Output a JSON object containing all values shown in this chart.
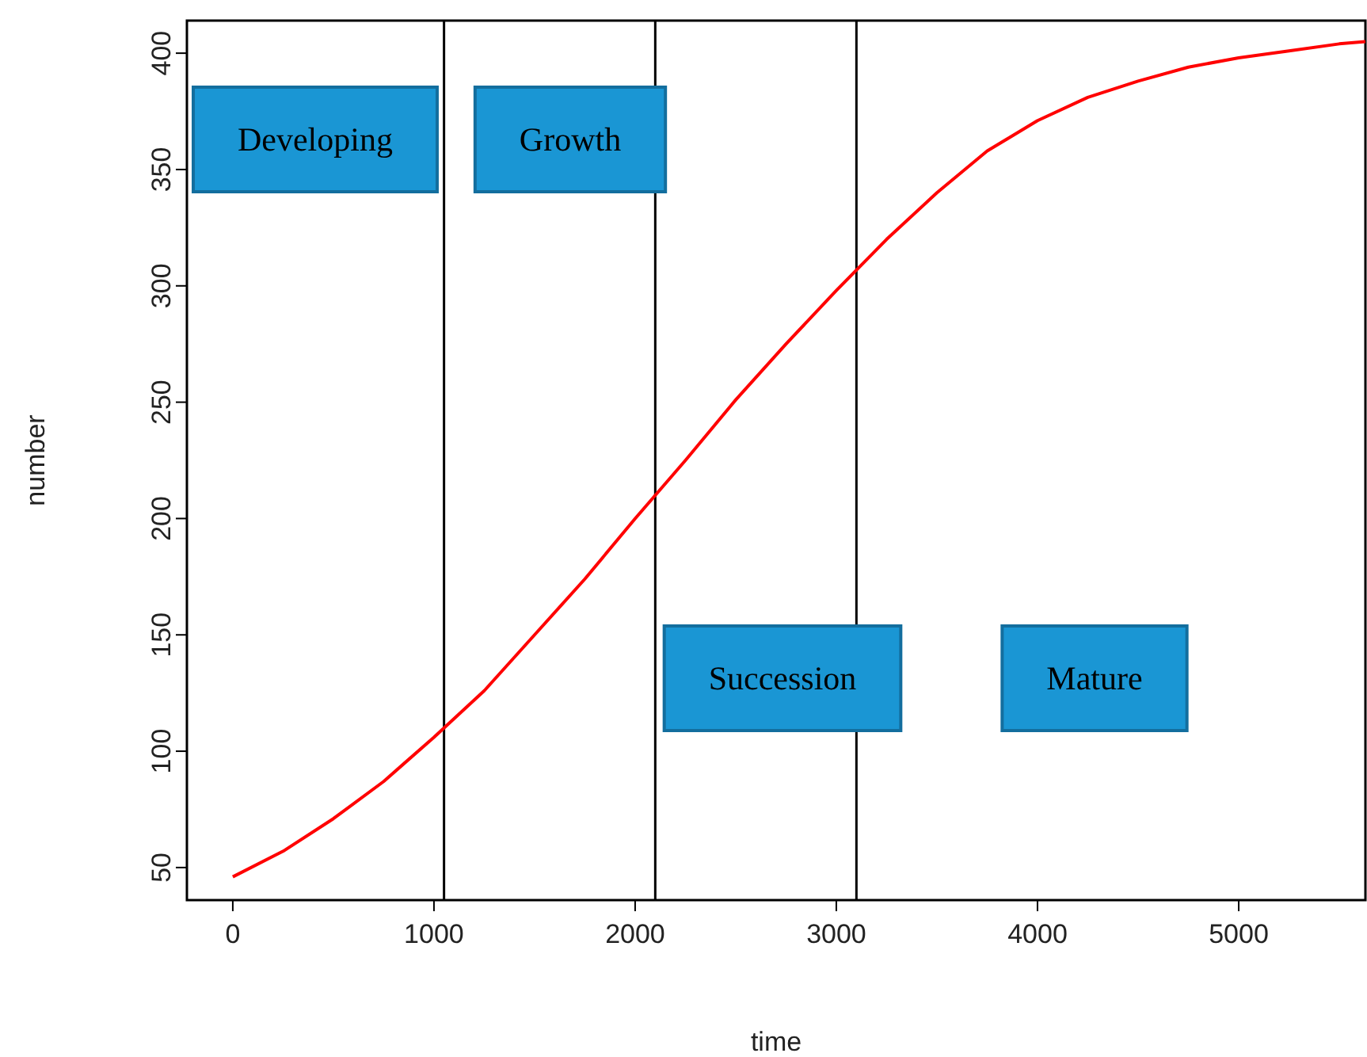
{
  "chart_data": {
    "type": "line",
    "xlabel": "time",
    "ylabel": "number",
    "x": [
      0,
      250,
      500,
      750,
      1000,
      1250,
      1500,
      1750,
      2000,
      2250,
      2500,
      2750,
      3000,
      3250,
      3500,
      3750,
      4000,
      4250,
      4500,
      4750,
      5000,
      5250,
      5500,
      5630
    ],
    "series": [
      {
        "color": "#ff0000",
        "values": [
          46,
          57,
          71,
          87,
          106,
          126,
          150,
          174,
          200,
          225,
          251,
          275,
          298,
          320,
          340,
          358,
          371,
          381,
          388,
          394,
          398,
          401,
          404,
          405
        ]
      }
    ],
    "xlim": [
      -228,
      5630
    ],
    "ylim": [
      36,
      414
    ],
    "xticks": [
      0,
      1000,
      2000,
      3000,
      4000,
      5000
    ],
    "yticks": [
      50,
      100,
      150,
      200,
      250,
      300,
      350,
      400
    ],
    "ref_lines": [
      {
        "axis": "x",
        "value": 1050,
        "color": "#000000"
      },
      {
        "axis": "x",
        "value": 2100,
        "color": "#000000"
      },
      {
        "axis": "x",
        "value": 3100,
        "color": "#000000"
      }
    ],
    "annotations": [
      "Developing",
      "Growth",
      "Succession",
      "Mature"
    ],
    "grid": false,
    "marker": "none",
    "line_style": "solid"
  }
}
